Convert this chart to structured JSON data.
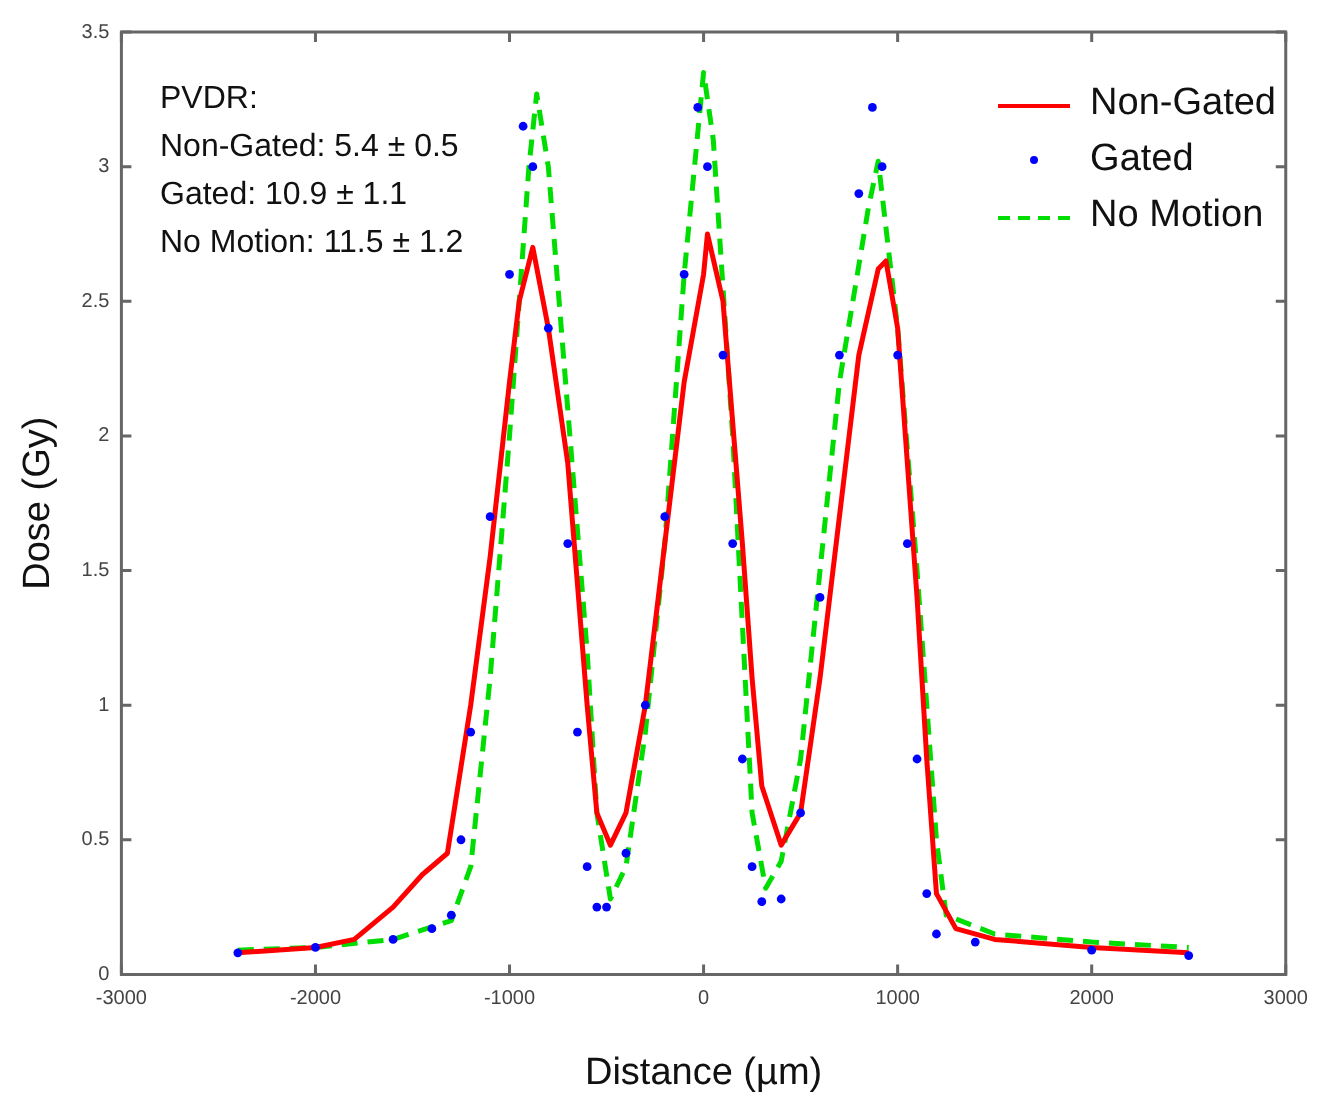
{
  "chart_data": {
    "type": "line",
    "xlabel": "Distance (µm)",
    "ylabel": "Dose (Gy)",
    "xlim": [
      -3000,
      3000
    ],
    "xticks": [
      -3000,
      -2000,
      -1000,
      0,
      1000,
      2000,
      3000
    ],
    "ylim": [
      0,
      3.5
    ],
    "yticks": [
      0,
      0.5,
      1,
      1.5,
      2,
      2.5,
      3,
      3.5
    ],
    "grid": false,
    "legend": "top right",
    "annotations": [
      "PVDR:",
      "Non-Gated: 5.4 ± 0.5",
      "Gated: 10.9 ± 1.1",
      "No Motion: 11.5 ± 1.2"
    ],
    "series": [
      {
        "name": "Non-Gated",
        "color": "#ff0000",
        "type": "line",
        "line_style": "solid",
        "marker": "none",
        "x": [
          -2400,
          -2000,
          -1800,
          -1600,
          -1450,
          -1320,
          -1200,
          -1100,
          -1000,
          -950,
          -880,
          -800,
          -700,
          -600,
          -550,
          -480,
          -400,
          -300,
          -200,
          -100,
          0,
          20,
          100,
          200,
          250,
          300,
          400,
          500,
          600,
          700,
          800,
          900,
          940,
          1000,
          1100,
          1150,
          1200,
          1300,
          1500,
          2000,
          2500
        ],
        "values": [
          0.08,
          0.1,
          0.13,
          0.25,
          0.37,
          0.45,
          1.0,
          1.55,
          2.2,
          2.5,
          2.7,
          2.4,
          1.9,
          1.0,
          0.6,
          0.48,
          0.6,
          1.0,
          1.6,
          2.2,
          2.6,
          2.75,
          2.5,
          1.6,
          1.1,
          0.7,
          0.48,
          0.6,
          1.1,
          1.7,
          2.3,
          2.62,
          2.65,
          2.4,
          1.4,
          0.8,
          0.3,
          0.17,
          0.13,
          0.1,
          0.08
        ]
      },
      {
        "name": "Gated",
        "color": "#0000ff",
        "type": "scatter",
        "marker": "circle",
        "x": [
          -2400,
          -2000,
          -1600,
          -1400,
          -1300,
          -1250,
          -1200,
          -1100,
          -1000,
          -930,
          -880,
          -800,
          -700,
          -650,
          -600,
          -550,
          -500,
          -400,
          -300,
          -200,
          -100,
          -30,
          20,
          100,
          150,
          200,
          250,
          300,
          400,
          500,
          600,
          700,
          800,
          870,
          920,
          1000,
          1050,
          1100,
          1150,
          1200,
          1400,
          2000,
          2500
        ],
        "values": [
          0.08,
          0.1,
          0.13,
          0.17,
          0.22,
          0.5,
          0.9,
          1.7,
          2.6,
          3.15,
          3.0,
          2.4,
          1.6,
          0.9,
          0.4,
          0.25,
          0.25,
          0.45,
          1.0,
          1.7,
          2.6,
          3.22,
          3.0,
          2.3,
          1.6,
          0.8,
          0.4,
          0.27,
          0.28,
          0.6,
          1.4,
          2.3,
          2.9,
          3.22,
          3.0,
          2.3,
          1.6,
          0.8,
          0.3,
          0.15,
          0.12,
          0.09,
          0.07
        ]
      },
      {
        "name": "No Motion",
        "color": "#00dd00",
        "type": "line",
        "line_style": "dashed",
        "marker": "none",
        "x": [
          -2400,
          -2000,
          -1600,
          -1300,
          -1200,
          -1100,
          -1000,
          -900,
          -860,
          -800,
          -700,
          -600,
          -550,
          -480,
          -400,
          -300,
          -200,
          -100,
          0,
          50,
          150,
          200,
          250,
          320,
          400,
          500,
          600,
          700,
          850,
          900,
          1000,
          1100,
          1200,
          1250,
          1500,
          2000,
          2500
        ],
        "values": [
          0.09,
          0.1,
          0.13,
          0.2,
          0.4,
          1.1,
          2.0,
          3.0,
          3.27,
          3.0,
          2.1,
          1.2,
          0.6,
          0.28,
          0.4,
          0.9,
          1.6,
          2.6,
          3.35,
          3.1,
          2.0,
          1.3,
          0.6,
          0.32,
          0.42,
          0.8,
          1.5,
          2.2,
          2.85,
          3.02,
          2.4,
          1.5,
          0.5,
          0.22,
          0.15,
          0.12,
          0.1
        ]
      }
    ]
  }
}
